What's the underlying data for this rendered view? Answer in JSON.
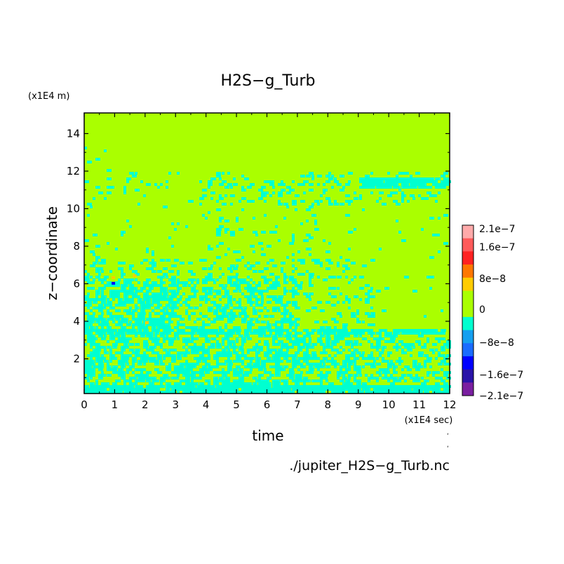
{
  "chart_data": {
    "type": "heatmap",
    "title": "H2S−g_Turb",
    "xlabel": "time",
    "ylabel": "z−coordinate",
    "x_unit": "(x1E4 sec)",
    "y_unit": "(x1E4 m)",
    "xlim": [
      0,
      12
    ],
    "ylim": [
      0.15,
      15.1
    ],
    "x_ticks": [
      0,
      1,
      2,
      3,
      4,
      5,
      6,
      7,
      8,
      9,
      10,
      11,
      12
    ],
    "y_ticks": [
      2,
      4,
      6,
      8,
      10,
      12,
      14
    ],
    "colorbar": {
      "levels": [
        {
          "value": -2.1e-07,
          "color": "#7a1fa0"
        },
        {
          "value": -1.9e-07,
          "color": "#2a14a8"
        },
        {
          "value": -1.6e-07,
          "color": "#0000ff"
        },
        {
          "value": -1.2e-07,
          "color": "#1a6cff"
        },
        {
          "value": -8e-08,
          "color": "#159ff0"
        },
        {
          "value": -4e-08,
          "color": "#00ffd0"
        },
        {
          "value": 0,
          "color": "#aaff00"
        },
        {
          "value": 4e-08,
          "color": "#aaff00"
        },
        {
          "value": 8e-08,
          "color": "#ffcc00"
        },
        {
          "value": 1.2e-07,
          "color": "#ff7700"
        },
        {
          "value": 1.6e-07,
          "color": "#ff2222"
        },
        {
          "value": 1.9e-07,
          "color": "#ff5a5a"
        },
        {
          "value": 2.1e-07,
          "color": "#ffaaaa"
        }
      ],
      "tick_labels": [
        "2.1e−7",
        "1.6e−7",
        "8e−8",
        "0",
        "−8e−8",
        "−1.6e−7",
        "−2.1e−7"
      ]
    },
    "background_value": 0,
    "regions": [
      {
        "description": "fluctuating band near surface",
        "x": [
          0,
          12
        ],
        "y": [
          0.15,
          4
        ]
      },
      {
        "description": "mixed band",
        "x": [
          0,
          9.5
        ],
        "y": [
          4,
          7
        ]
      },
      {
        "description": "band near 12",
        "x": [
          4,
          12
        ],
        "y": [
          10.5,
          12
        ]
      }
    ]
  },
  "footer": {
    "source_file": "./jupiter_H2S−g_Turb.nc"
  },
  "colors": {
    "background_field": "#aaff00",
    "negative_field": "#00ffd0",
    "axis": "#000000"
  }
}
